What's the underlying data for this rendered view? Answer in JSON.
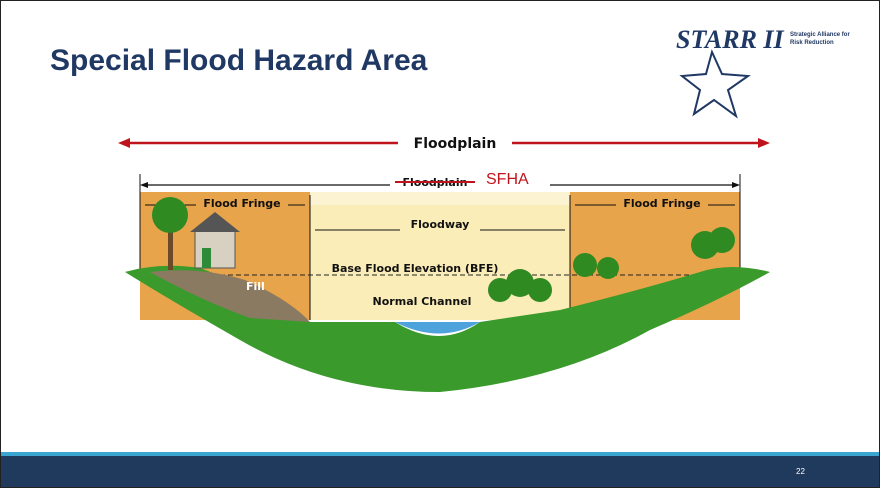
{
  "header": {
    "title": "Special Flood Hazard Area"
  },
  "logo": {
    "name": "STARR II",
    "tagline": [
      "Strategic Alliance for",
      "Risk Reduction"
    ]
  },
  "diagram": {
    "floodplain": "Floodplain",
    "sfha_struck": "Floodplain",
    "sfha": "SFHA",
    "left_fringe": "Flood Fringe",
    "floodway": "Floodway",
    "right_fringe": "Flood Fringe",
    "bfe": "Base Flood Elevation (BFE)",
    "channel": "Normal Channel",
    "fill": "Fill"
  },
  "footer": {
    "page_number": "22"
  }
}
